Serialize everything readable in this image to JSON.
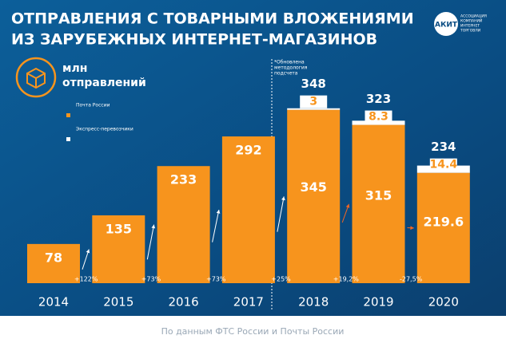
{
  "chart_data": {
    "type": "bar",
    "title_lines": [
      "ОТПРАВЛЕНИЯ С ТОВАРНЫМИ ВЛОЖЕНИЯМИ",
      "ИЗ ЗАРУБЕЖНЫХ ИНТЕРНЕТ-МАГАЗИНОВ"
    ],
    "logo": {
      "name": "АКИТ",
      "caption": [
        "АССОЦИАЦИЯ",
        "КОМПАНИЙ",
        "ИНТЕРНЕТ",
        "ТОРГОВЛИ"
      ]
    },
    "unit_lines": [
      "млн",
      "отправлений"
    ],
    "note_lines": [
      "*Обновлена",
      "методология",
      "подсчета"
    ],
    "categories": [
      "2014",
      "2015",
      "2016",
      "2017",
      "2018",
      "2019",
      "2020"
    ],
    "series": [
      {
        "name": "Почта России",
        "color": "#f7941d",
        "values": [
          78,
          135,
          233,
          292,
          345,
          315,
          219.6
        ]
      },
      {
        "name": "Экспресс-перевозчики",
        "color": "#ffffff",
        "values": [
          null,
          null,
          null,
          null,
          3,
          8.3,
          14.4
        ]
      }
    ],
    "totals": [
      null,
      null,
      null,
      null,
      348,
      323,
      234
    ],
    "growth_labels": [
      "+122%",
      "+73%",
      "+73%",
      "+25%",
      "+19,2%",
      "-27,5%"
    ],
    "source": "По данным ФТС России и Почты России"
  }
}
